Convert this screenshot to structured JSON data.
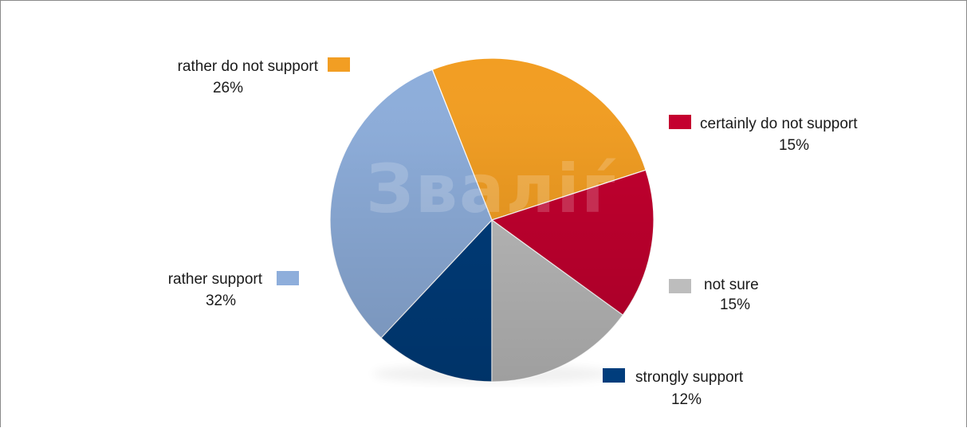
{
  "chart_data": {
    "type": "pie",
    "title": "",
    "legend_placement": "labels beside slices",
    "slices": [
      {
        "label": "strongly support",
        "value": 12,
        "value_label": "12%",
        "color": "#003d7c"
      },
      {
        "label": "rather support",
        "value": 32,
        "value_label": "32%",
        "color": "#8eaedb"
      },
      {
        "label": "rather do not support",
        "value": 26,
        "value_label": "26%",
        "color": "#f29e23"
      },
      {
        "label": "certainly do not support",
        "value": 15,
        "value_label": "15%",
        "color": "#c4002f"
      },
      {
        "label": "not sure",
        "value": 15,
        "value_label": "15%",
        "color": "#bdbdbd"
      }
    ]
  },
  "watermark": {
    "text": "Зваліѓ"
  }
}
